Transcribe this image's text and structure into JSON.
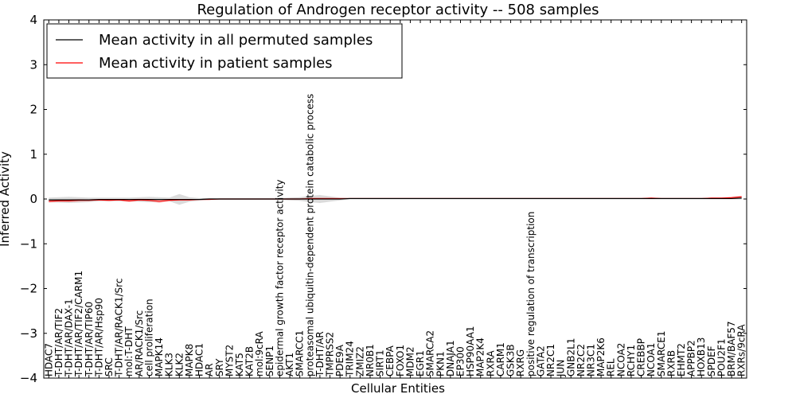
{
  "chart_data": {
    "type": "line",
    "title": "Regulation of Androgen receptor activity -- 508 samples",
    "xlabel": "Cellular Entities",
    "ylabel": "Inferred Activity",
    "ylim": [
      -4,
      4
    ],
    "yticks": [
      -4,
      -3,
      -2,
      -1,
      0,
      1,
      2,
      3,
      4
    ],
    "legend_position": "top-left",
    "colors": {
      "permuted": "#000000",
      "patient": "#ff0000",
      "band_permuted": "#b0b0b0",
      "band_patient": "#ff8080"
    },
    "categories": [
      "HDAC7",
      "T-DHT/AR/TIF2",
      "T-DHT/AR/DAX-1",
      "T-DHT/AR/TIF2/CARM1",
      "T-DHT/AR/TIP60",
      "T-DHT/AR/Hsp90",
      "SRC",
      "T-DHT/AR/RACK1/Src",
      "mol:T-DHT",
      "AR/RACK1/Src",
      "cell proliferation",
      "MAPK14",
      "KLK3",
      "KLK2",
      "MAPK8",
      "HDAC1",
      "AR",
      "SRY",
      "MYST2",
      "KAT5",
      "KAT2B",
      "mol:9cRA",
      "SENP1",
      "epidermal growth factor receptor activity",
      "AKT1",
      "SMARCC1",
      "proteasomal ubiquitin-dependent protein catabolic process",
      "T-DHT/AR",
      "TMPRSS2",
      "PDE9A",
      "TRIM24",
      "ZMIZ2",
      "NR0B1",
      "SIRT1",
      "CEBPA",
      "FOXO1",
      "MDM2",
      "EGR1",
      "SMARCA2",
      "PKN1",
      "DNAJA1",
      "EP300",
      "HSP90AA1",
      "MAP2K4",
      "RXRA",
      "CARM1",
      "GSK3B",
      "RXRG",
      "positive regulation of transcription",
      "GATA2",
      "NR2C1",
      "JUN",
      "GNB2L1",
      "NR2C2",
      "NR3C1",
      "MAP2K6",
      "REL",
      "NCOA2",
      "RCHY1",
      "CREBBP",
      "NCOA1",
      "SMARCE1",
      "RXRB",
      "EHMT2",
      "APPBP2",
      "HOXB13",
      "SPDEF",
      "POU2F1",
      "BRM/BAF57",
      "RXRs/9cRA"
    ],
    "series": [
      {
        "name": "Mean activity in all permuted samples",
        "values": [
          -0.02,
          -0.02,
          -0.02,
          -0.02,
          -0.02,
          -0.01,
          -0.01,
          -0.01,
          -0.01,
          -0.01,
          -0.01,
          -0.01,
          -0.01,
          -0.01,
          -0.01,
          -0.01,
          0.0,
          0.0,
          0.0,
          0.0,
          0.0,
          0.0,
          0.0,
          0.0,
          0.0,
          0.0,
          0.0,
          0.0,
          0.0,
          0.0,
          0.01,
          0.01,
          0.01,
          0.01,
          0.01,
          0.01,
          0.01,
          0.01,
          0.01,
          0.01,
          0.01,
          0.01,
          0.01,
          0.01,
          0.01,
          0.01,
          0.01,
          0.01,
          0.01,
          0.01,
          0.01,
          0.01,
          0.01,
          0.01,
          0.01,
          0.01,
          0.01,
          0.01,
          0.01,
          0.01,
          0.01,
          0.01,
          0.01,
          0.01,
          0.01,
          0.01,
          0.01,
          0.01,
          0.01,
          0.02
        ],
        "band": [
          0.05,
          0.06,
          0.07,
          0.06,
          0.05,
          0.04,
          0.04,
          0.04,
          0.04,
          0.05,
          0.06,
          0.05,
          0.04,
          0.12,
          0.05,
          0.03,
          0.02,
          0.02,
          0.02,
          0.02,
          0.02,
          0.02,
          0.02,
          0.02,
          0.03,
          0.04,
          0.07,
          0.09,
          0.06,
          0.03,
          0.02,
          0.02,
          0.02,
          0.02,
          0.02,
          0.02,
          0.02,
          0.02,
          0.02,
          0.02,
          0.02,
          0.02,
          0.02,
          0.02,
          0.02,
          0.02,
          0.02,
          0.02,
          0.02,
          0.02,
          0.02,
          0.02,
          0.02,
          0.02,
          0.02,
          0.02,
          0.02,
          0.02,
          0.02,
          0.02,
          0.02,
          0.02,
          0.02,
          0.02,
          0.02,
          0.02,
          0.02,
          0.02,
          0.02,
          0.03
        ]
      },
      {
        "name": "Mean activity in patient samples",
        "values": [
          -0.05,
          -0.04,
          -0.04,
          -0.03,
          -0.03,
          -0.02,
          -0.03,
          -0.02,
          -0.04,
          -0.02,
          -0.03,
          -0.05,
          -0.03,
          -0.02,
          -0.02,
          -0.01,
          -0.01,
          0.0,
          0.0,
          0.0,
          0.0,
          0.0,
          0.0,
          0.0,
          0.0,
          0.0,
          0.01,
          0.01,
          0.01,
          0.01,
          0.01,
          0.01,
          0.01,
          0.01,
          0.01,
          0.01,
          0.01,
          0.01,
          0.01,
          0.01,
          0.01,
          0.01,
          0.01,
          0.01,
          0.01,
          0.01,
          0.01,
          0.01,
          0.01,
          0.01,
          0.01,
          0.01,
          0.01,
          0.01,
          0.01,
          0.01,
          0.01,
          0.01,
          0.01,
          0.01,
          0.02,
          0.01,
          0.01,
          0.01,
          0.01,
          0.01,
          0.02,
          0.02,
          0.03,
          0.05
        ],
        "band": [
          0.03,
          0.03,
          0.03,
          0.03,
          0.02,
          0.02,
          0.02,
          0.02,
          0.03,
          0.03,
          0.03,
          0.04,
          0.02,
          0.02,
          0.02,
          0.01,
          0.01,
          0.01,
          0.01,
          0.01,
          0.01,
          0.01,
          0.01,
          0.01,
          0.02,
          0.02,
          0.02,
          0.02,
          0.02,
          0.01,
          0.01,
          0.01,
          0.01,
          0.01,
          0.01,
          0.01,
          0.01,
          0.01,
          0.01,
          0.01,
          0.01,
          0.01,
          0.01,
          0.01,
          0.01,
          0.01,
          0.01,
          0.01,
          0.01,
          0.01,
          0.01,
          0.01,
          0.01,
          0.01,
          0.01,
          0.01,
          0.01,
          0.01,
          0.01,
          0.01,
          0.01,
          0.01,
          0.01,
          0.01,
          0.01,
          0.01,
          0.01,
          0.01,
          0.02,
          0.02
        ]
      }
    ]
  }
}
